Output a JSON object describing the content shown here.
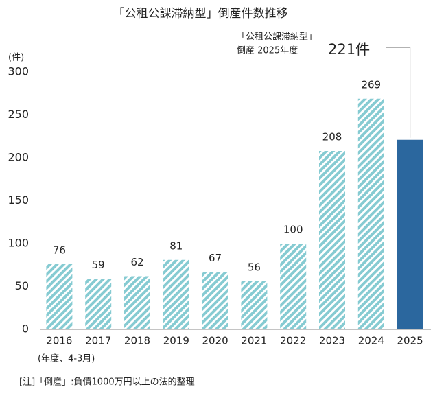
{
  "chart_data": {
    "type": "bar",
    "title": "「公租公課滞納型」倒産件数推移",
    "y_unit": "(件)",
    "x_note": "(年度、4-3月)",
    "footnote": "[注]「倒産」:負債1000万円以上の法的整理",
    "categories": [
      "2016",
      "2017",
      "2018",
      "2019",
      "2020",
      "2021",
      "2022",
      "2023",
      "2024",
      "2025"
    ],
    "values": [
      76,
      59,
      62,
      81,
      67,
      56,
      100,
      208,
      269,
      221
    ],
    "value_labels": [
      "76",
      "59",
      "62",
      "81",
      "67",
      "56",
      "100",
      "208",
      "269",
      "221件"
    ],
    "bar_styles": [
      "hatched",
      "hatched",
      "hatched",
      "hatched",
      "hatched",
      "hatched",
      "hatched",
      "hatched",
      "hatched",
      "solid"
    ],
    "color": "#86cbd2",
    "solid_color": "#2b679e",
    "annotation": [
      "「公租公課滞納型」",
      "倒産 2025年度"
    ],
    "ylim": [
      0,
      300
    ],
    "yticks": [
      0,
      50,
      100,
      150,
      200,
      250,
      300
    ],
    "grid": false
  }
}
